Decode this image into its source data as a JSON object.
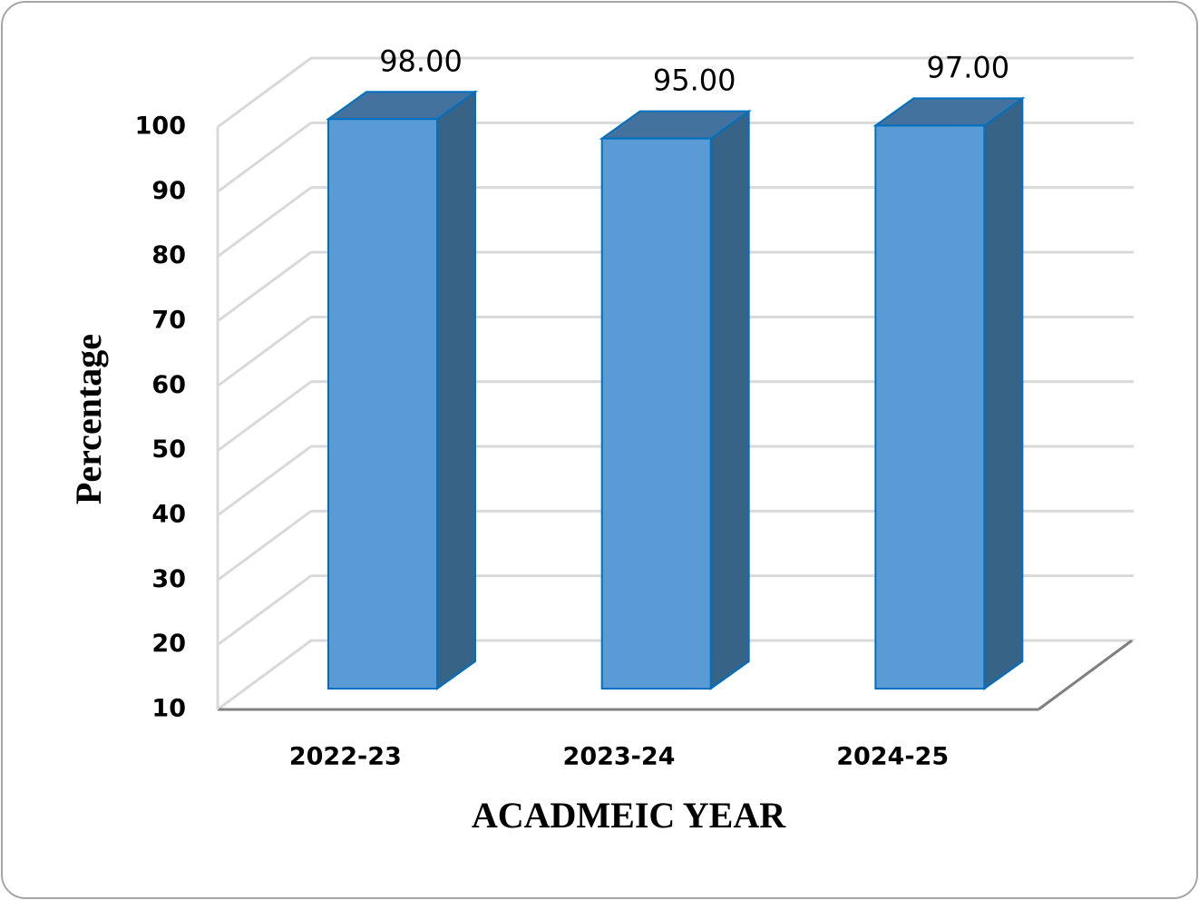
{
  "chart_data": {
    "type": "bar3d",
    "x_label": "ACADMEIC YEAR",
    "y_label": "Percentage",
    "categories": [
      "2022-23",
      "2023-24",
      "2024-25"
    ],
    "values": [
      98,
      95,
      97
    ],
    "value_labels": [
      "98.00",
      "95.00",
      "97.00"
    ],
    "color": "#5b9bd5",
    "ylim": [
      10,
      100
    ],
    "yticks": [
      10,
      20,
      30,
      40,
      50,
      60,
      70,
      80,
      90,
      100
    ],
    "grid": true
  }
}
